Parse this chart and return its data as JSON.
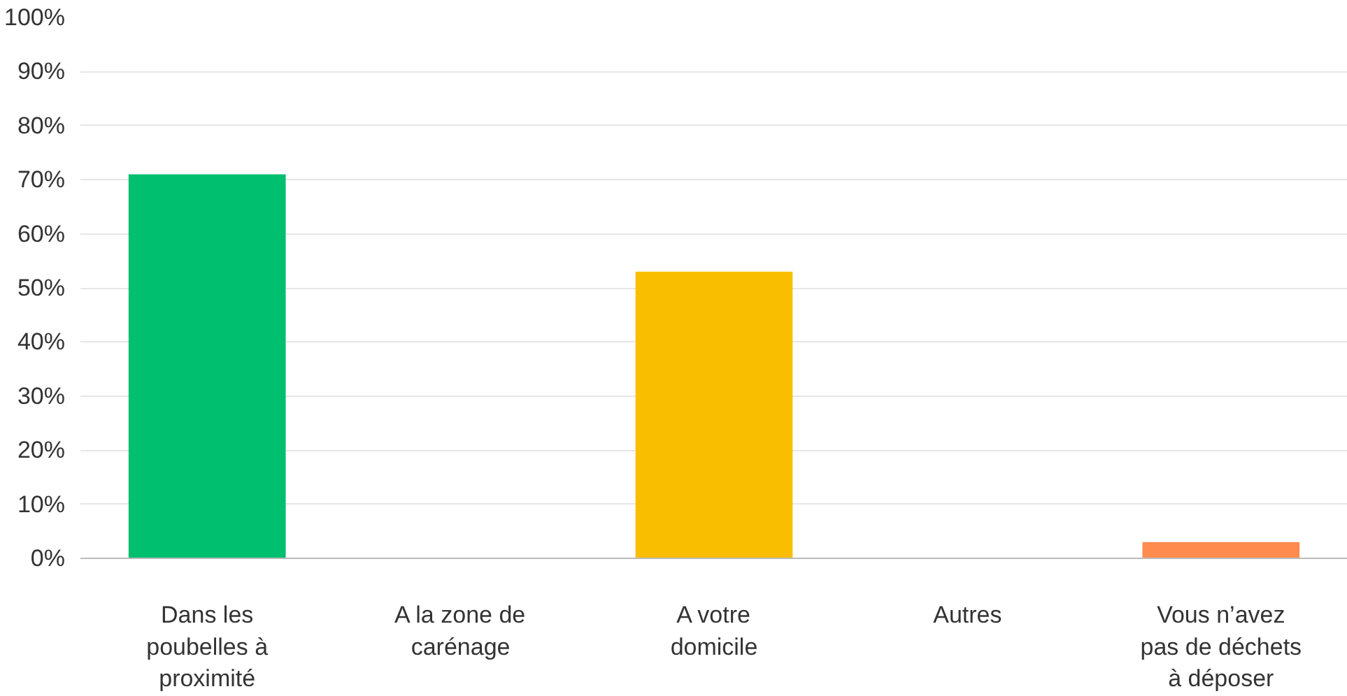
{
  "chart_data": {
    "type": "bar",
    "categories": [
      "Dans les poubelles à proximité",
      "A la zone de carénage",
      "A votre domicile",
      "Autres",
      "Vous n’avez pas de déchets à déposer"
    ],
    "values": [
      71,
      0,
      53,
      0,
      3
    ],
    "colors": [
      "#00bf6f",
      "#6bc8cd",
      "#f9be00",
      "#507cb6",
      "#ff8b4f"
    ],
    "ylim": [
      0,
      100
    ],
    "yticks": [
      {
        "value": 0,
        "label": "0%"
      },
      {
        "value": 10,
        "label": "10%"
      },
      {
        "value": 20,
        "label": "20%"
      },
      {
        "value": 30,
        "label": "30%"
      },
      {
        "value": 40,
        "label": "40%"
      },
      {
        "value": 50,
        "label": "50%"
      },
      {
        "value": 60,
        "label": "60%"
      },
      {
        "value": 70,
        "label": "70%"
      },
      {
        "value": 80,
        "label": "80%"
      },
      {
        "value": 90,
        "label": "90%"
      },
      {
        "value": 100,
        "label": "100%"
      }
    ],
    "grid": "y"
  }
}
